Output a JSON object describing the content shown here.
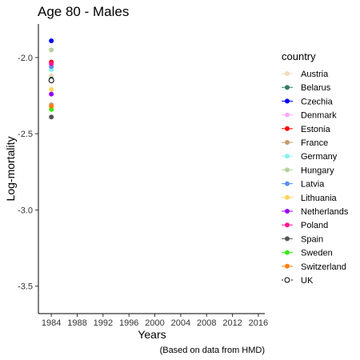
{
  "chart_data": {
    "type": "scatter",
    "title": "Age 80 - Males",
    "xlabel": "Years",
    "ylabel": "Log-mortality",
    "caption": "(Based on data from HMD)",
    "xlim": [
      1982,
      2017
    ],
    "ylim": [
      -3.68,
      -1.78
    ],
    "xticks": [
      1984,
      1988,
      1992,
      1996,
      2000,
      2004,
      2008,
      2012,
      2016
    ],
    "yticks": [
      -2.0,
      -2.5,
      -3.0,
      -3.5
    ],
    "ytick_labels": [
      "-2.0",
      "-2.5",
      "-3.0",
      "-3.5"
    ],
    "grid": false,
    "legend_placement": "right",
    "legend_title": "country",
    "series": [
      {
        "name": "Austria",
        "color": "#f1d9b8",
        "x": [
          1984
        ],
        "y": [
          -2.12
        ]
      },
      {
        "name": "Belarus",
        "color": "#2e7d6b",
        "x": [
          1984
        ],
        "y": [
          -2.14
        ]
      },
      {
        "name": "Czechia",
        "color": "#0000ff",
        "x": [
          1984
        ],
        "y": [
          -1.89
        ]
      },
      {
        "name": "Denmark",
        "color": "#ffaaff",
        "x": [
          1984
        ],
        "y": [
          -2.05
        ]
      },
      {
        "name": "Estonia",
        "color": "#ff0000",
        "x": [
          1984
        ],
        "y": [
          -2.03
        ]
      },
      {
        "name": "France",
        "color": "#c49a6c",
        "x": [
          1984
        ],
        "y": [
          -2.31
        ]
      },
      {
        "name": "Germany",
        "color": "#88f2ee",
        "x": [
          1984
        ],
        "y": [
          -2.08
        ]
      },
      {
        "name": "Hungary",
        "color": "#b5d19b",
        "x": [
          1984
        ],
        "y": [
          -1.95
        ]
      },
      {
        "name": "Latvia",
        "color": "#5b8ff0",
        "x": [
          1984
        ],
        "y": [
          -2.06
        ]
      },
      {
        "name": "Lithuania",
        "color": "#ffd45a",
        "x": [
          1984
        ],
        "y": [
          -2.21
        ]
      },
      {
        "name": "Netherlands",
        "color": "#9900ff",
        "x": [
          1984
        ],
        "y": [
          -2.24
        ]
      },
      {
        "name": "Poland",
        "color": "#ff1493",
        "x": [
          1984
        ],
        "y": [
          -2.04
        ]
      },
      {
        "name": "Spain",
        "color": "#555555",
        "x": [
          1984
        ],
        "y": [
          -2.39
        ]
      },
      {
        "name": "Sweden",
        "color": "#33ee11",
        "x": [
          1984
        ],
        "y": [
          -2.34
        ]
      },
      {
        "name": "Switzerland",
        "color": "#ff7f0e",
        "x": [
          1984
        ],
        "y": [
          -2.32
        ]
      },
      {
        "name": "UK",
        "color": "#000000",
        "x": [
          1984
        ],
        "y": [
          -2.15
        ],
        "hollow": true
      }
    ]
  }
}
